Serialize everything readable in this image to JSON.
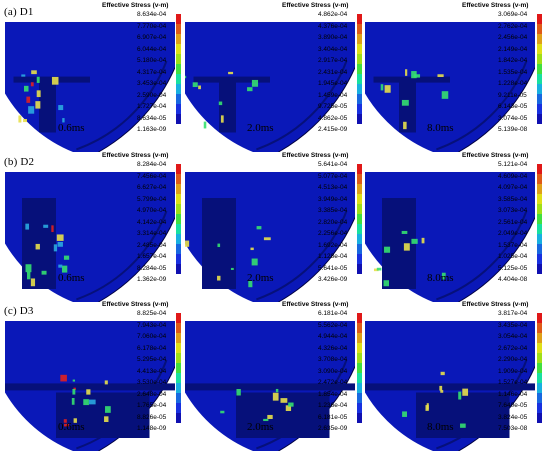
{
  "figure": {
    "cb_title": "Effective Stress (v-m)",
    "colors": {
      "sim_bg": "#0a18b8",
      "sim_dark": "#06107a",
      "accent_green": "#35e070",
      "accent_yellow": "#e8e04a",
      "accent_red": "#e02020"
    },
    "colorbar_colors": [
      "#e01818",
      "#e05a18",
      "#e0a018",
      "#e0e018",
      "#a0e018",
      "#40e040",
      "#18e0a0",
      "#18b0e0",
      "#1868e0",
      "#1830e0",
      "#1010b0"
    ]
  },
  "rows": [
    {
      "label": "(a) D1",
      "panels": [
        {
          "time": "0.6ms",
          "ticks": [
            "8.634e-04",
            "7.770e-04",
            "6.907e-04",
            "6.044e-04",
            "5.180e-04",
            "4.317e-04",
            "3.453e-04",
            "2.590e-04",
            "1.727e-04",
            "8.634e-05",
            "1.163e-09"
          ]
        },
        {
          "time": "2.0ms",
          "ticks": [
            "4.862e-04",
            "4.376e-04",
            "3.890e-04",
            "3.404e-04",
            "2.917e-04",
            "2.431e-04",
            "1.945e-04",
            "1.459e-04",
            "9.725e-05",
            "4.862e-05",
            "2.415e-09"
          ]
        },
        {
          "time": "8.0ms",
          "ticks": [
            "3.069e-04",
            "2.762e-04",
            "2.456e-04",
            "2.149e-04",
            "1.842e-04",
            "1.535e-04",
            "1.228e-04",
            "9.211e-05",
            "6.143e-05",
            "3.074e-05",
            "5.139e-08"
          ]
        }
      ]
    },
    {
      "label": "(b) D2",
      "panels": [
        {
          "time": "0.6ms",
          "ticks": [
            "8.284e-04",
            "7.456e-04",
            "6.627e-04",
            "5.799e-04",
            "4.970e-04",
            "4.142e-04",
            "3.314e-04",
            "2.485e-04",
            "1.657e-04",
            "8.284e-05",
            "1.362e-09"
          ]
        },
        {
          "time": "2.0ms",
          "ticks": [
            "5.641e-04",
            "5.077e-04",
            "4.513e-04",
            "3.949e-04",
            "3.385e-04",
            "2.820e-04",
            "2.256e-04",
            "1.692e-04",
            "1.128e-04",
            "5.641e-05",
            "3.426e-09"
          ]
        },
        {
          "time": "8.0ms",
          "ticks": [
            "5.121e-04",
            "4.609e-04",
            "4.097e-04",
            "3.585e-04",
            "3.073e-04",
            "2.561e-04",
            "2.049e-04",
            "1.537e-04",
            "1.025e-04",
            "5.125e-05",
            "4.404e-08"
          ]
        }
      ]
    },
    {
      "label": "(c) D3",
      "panels": [
        {
          "time": "0.6ms",
          "ticks": [
            "8.825e-04",
            "7.943e-04",
            "7.060e-04",
            "6.178e-04",
            "5.295e-04",
            "4.413e-04",
            "3.530e-04",
            "2.648e-04",
            "1.765e-04",
            "8.826e-05",
            "1.148e-09"
          ]
        },
        {
          "time": "2.0ms",
          "ticks": [
            "6.181e-04",
            "5.562e-04",
            "4.944e-04",
            "4.326e-04",
            "3.708e-04",
            "3.090e-04",
            "2.472e-04",
            "1.854e-04",
            "1.236e-04",
            "6.181e-05",
            "2.635e-09"
          ]
        },
        {
          "time": "8.0ms",
          "ticks": [
            "3.817e-04",
            "3.435e-04",
            "3.054e-04",
            "2.672e-04",
            "2.290e-04",
            "1.909e-04",
            "1.527e-04",
            "1.146e-04",
            "7.640e-05",
            "3.824e-05",
            "7.503e-08"
          ]
        }
      ]
    }
  ]
}
